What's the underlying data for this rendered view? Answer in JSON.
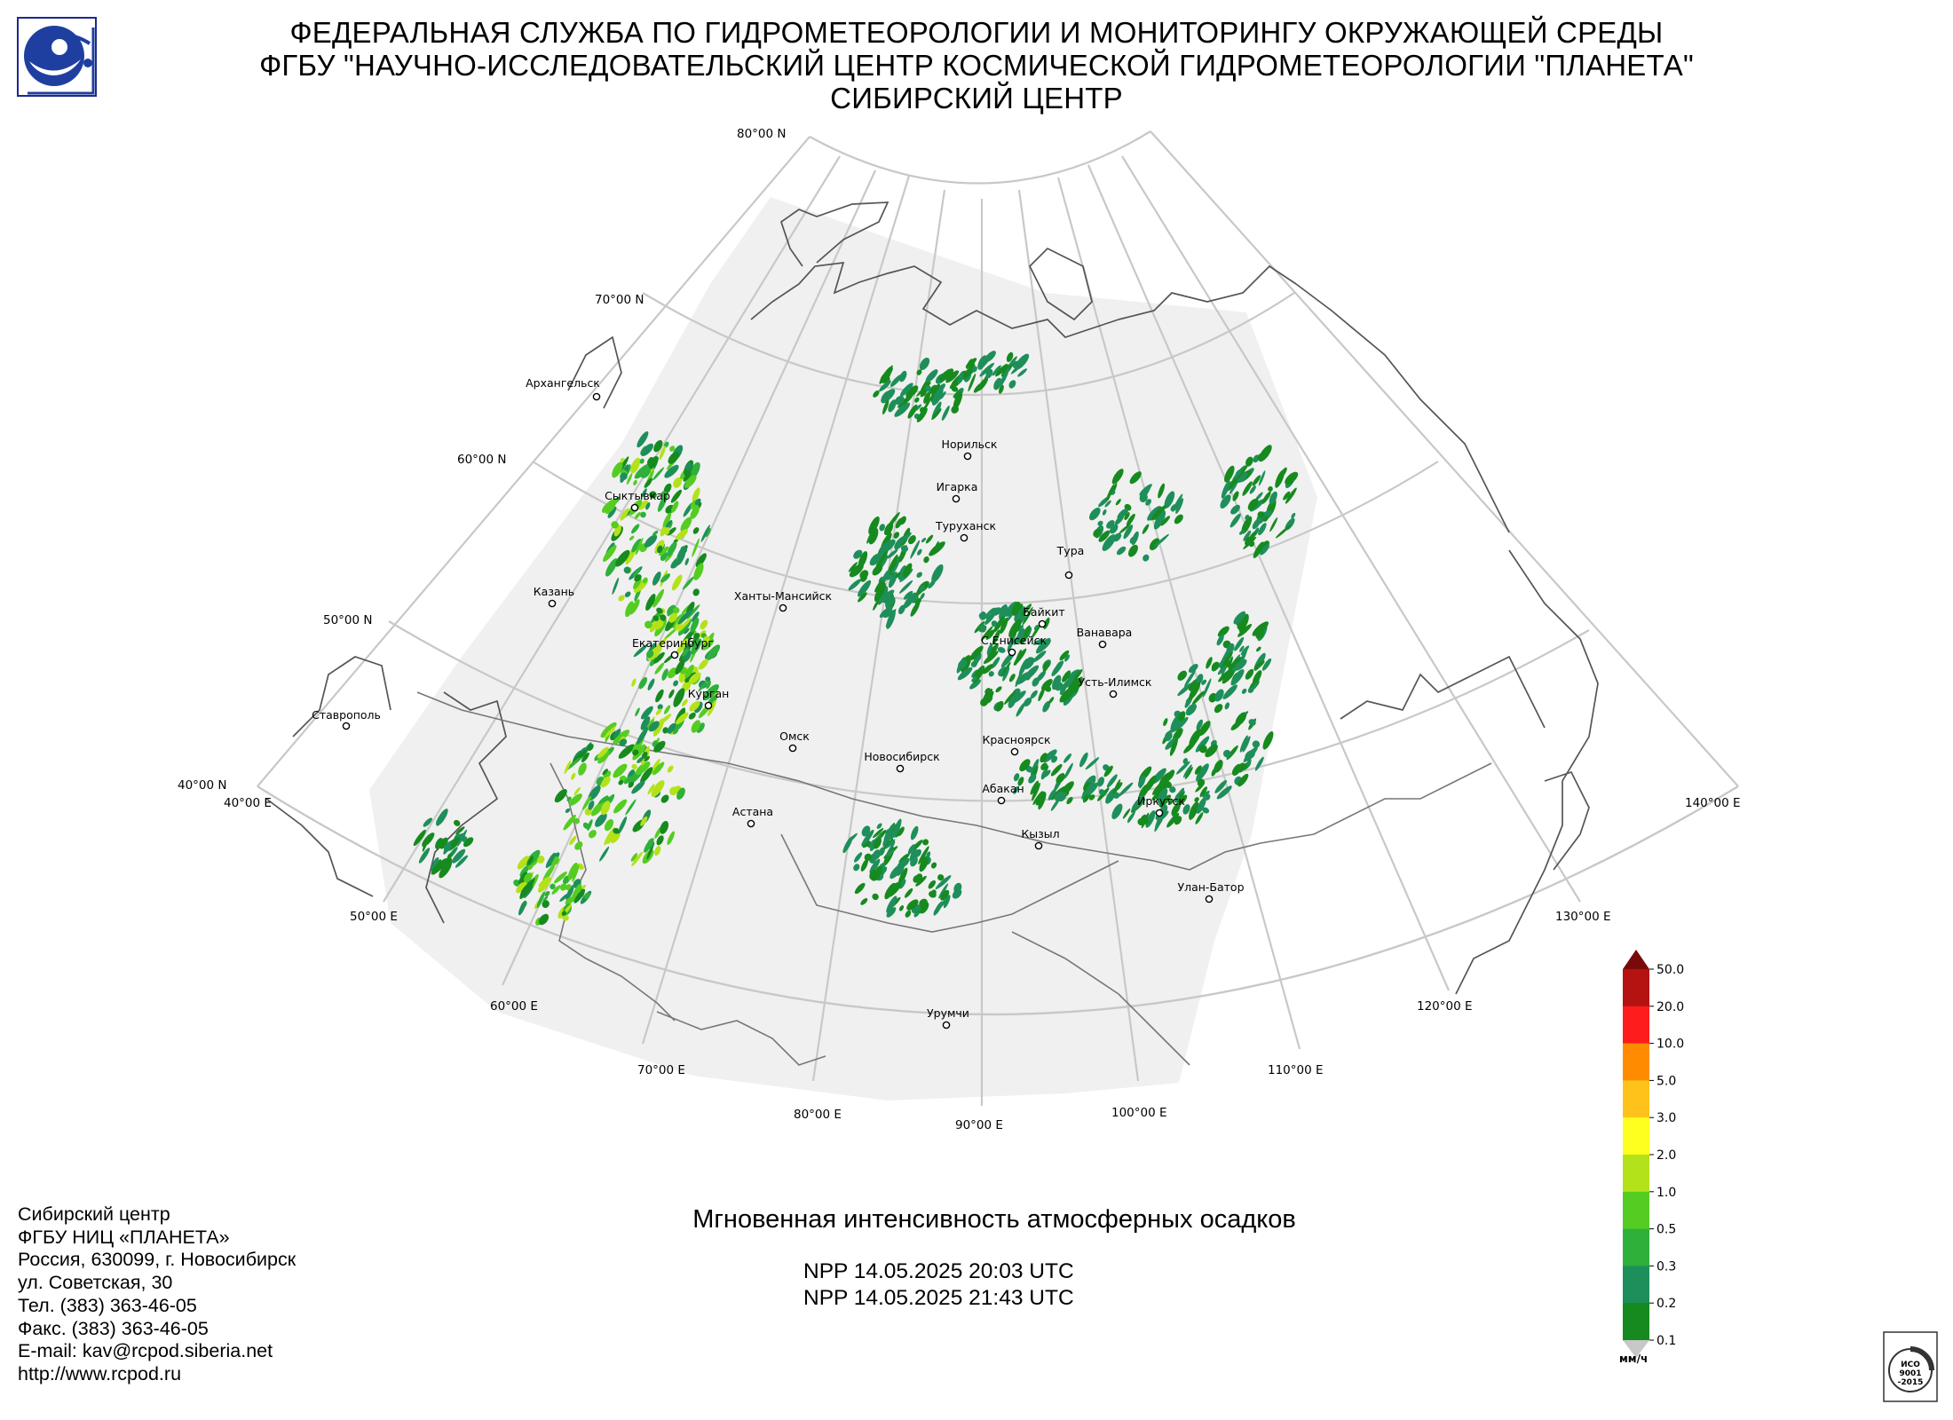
{
  "header": {
    "line1": "ФЕДЕРАЛЬНАЯ СЛУЖБА ПО ГИДРОМЕТЕОРОЛОГИИ И МОНИТОРИНГУ ОКРУЖАЮЩЕЙ СРЕДЫ",
    "line2": "ФГБУ \"НАУЧНО-ИССЛЕДОВАТЕЛЬСКИЙ ЦЕНТР КОСМИЧЕСКОЙ ГИДРОМЕТЕОРОЛОГИИ \"ПЛАНЕТА\"",
    "line3": "СИБИРСКИЙ ЦЕНТР"
  },
  "grid_labels": {
    "lat80": "80°00 N",
    "lat70": "70°00 N",
    "lat60": "60°00 N",
    "lat50": "50°00 N",
    "lat40": "40°00 N",
    "lon40": "40°00 E",
    "lon50": "50°00 E",
    "lon60": "60°00 E",
    "lon70": "70°00 E",
    "lon80": "80°00 E",
    "lon90": "90°00 E",
    "lon100": "100°00 E",
    "lon110": "110°00 E",
    "lon120": "120°00 E",
    "lon130": "130°00 E",
    "lon140": "140°00 E"
  },
  "cities": [
    {
      "name": "Архангельск"
    },
    {
      "name": "Сыктывкар"
    },
    {
      "name": "Казань"
    },
    {
      "name": "Екатеринбург"
    },
    {
      "name": "Курган"
    },
    {
      "name": "Ставрополь"
    },
    {
      "name": "Ханты-Мансийск"
    },
    {
      "name": "Омск"
    },
    {
      "name": "Астана"
    },
    {
      "name": "Новосибирск"
    },
    {
      "name": "Норильск"
    },
    {
      "name": "Игарка"
    },
    {
      "name": "Туруханск"
    },
    {
      "name": "Тура"
    },
    {
      "name": "Байкит"
    },
    {
      "name": "Ванавара"
    },
    {
      "name": "С.Енисейск"
    },
    {
      "name": "Усть-Илимск"
    },
    {
      "name": "Красноярск"
    },
    {
      "name": "Абакан"
    },
    {
      "name": "Иркутск"
    },
    {
      "name": "Кызыл"
    },
    {
      "name": "Улан-Батор"
    },
    {
      "name": "Урумчи"
    }
  ],
  "product": {
    "title": "Мгновенная интенсивность атмосферных осадков",
    "pass1": "NPP 14.05.2025  20:03 UTC",
    "pass2": "NPP 14.05.2025  21:43 UTC"
  },
  "legend": {
    "unit": "мм/ч",
    "levels": [
      "50.0",
      "20.0",
      "10.0",
      "5.0",
      "3.0",
      "2.0",
      "1.0",
      "0.5",
      "0.3",
      "0.2",
      "0.1"
    ],
    "colors": [
      "#7a0a0a",
      "#b51212",
      "#ff1c1c",
      "#ff8c00",
      "#ffc21a",
      "#ffff1f",
      "#b3e21a",
      "#55cc22",
      "#2eb03a",
      "#1e8f5a",
      "#168a1e"
    ]
  },
  "contacts": {
    "line1": "Сибирский центр",
    "line2": "ФГБУ НИЦ «ПЛАНЕТА»",
    "line3": "Россия, 630099, г. Новосибирск",
    "line4": "ул. Советская, 30",
    "line5": "Тел. (383) 363-46-05",
    "line6": "Факс. (383) 363-46-05",
    "line7": "E-mail: kav@rcpod.siberia.net",
    "line8": "http://www.rcpod.ru"
  },
  "iso_badge": {
    "text1": "ИСО",
    "text2": "9001",
    "text3": "-2015"
  }
}
